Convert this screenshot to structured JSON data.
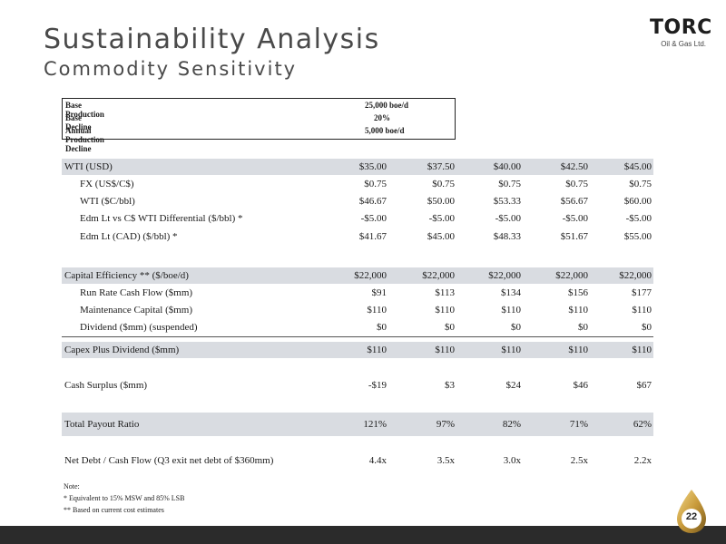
{
  "header": {
    "title": "Sustainability Analysis",
    "subtitle": "Commodity Sensitivity",
    "logo_name": "TORC",
    "logo_sub": "Oil & Gas Ltd."
  },
  "base": [
    {
      "label": "Base Production",
      "value": "25,000 boe/d"
    },
    {
      "label": "Base Decline",
      "value": "20%"
    },
    {
      "label": "Annual Production Decline",
      "value": "5,000 boe/d"
    }
  ],
  "rows": [
    {
      "label": "WTI (USD)",
      "values": [
        "$35.00",
        "$37.50",
        "$40.00",
        "$42.50",
        "$45.00"
      ]
    },
    {
      "label": "FX (US$/C$)",
      "values": [
        "$0.75",
        "$0.75",
        "$0.75",
        "$0.75",
        "$0.75"
      ]
    },
    {
      "label": "WTI ($C/bbl)",
      "values": [
        "$46.67",
        "$50.00",
        "$53.33",
        "$56.67",
        "$60.00"
      ]
    },
    {
      "label": "Edm Lt vs C$ WTI Differential ($/bbl) *",
      "values": [
        "-$5.00",
        "-$5.00",
        "-$5.00",
        "-$5.00",
        "-$5.00"
      ]
    },
    {
      "label": "Edm Lt (CAD) ($/bbl) *",
      "values": [
        "$41.67",
        "$45.00",
        "$48.33",
        "$51.67",
        "$55.00"
      ]
    },
    {
      "label": "Capital Efficiency ** ($/boe/d)",
      "values": [
        "$22,000",
        "$22,000",
        "$22,000",
        "$22,000",
        "$22,000"
      ]
    },
    {
      "label": "Run Rate Cash Flow ($mm)",
      "values": [
        "$91",
        "$113",
        "$134",
        "$156",
        "$177"
      ]
    },
    {
      "label": "Maintenance Capital ($mm)",
      "values": [
        "$110",
        "$110",
        "$110",
        "$110",
        "$110"
      ]
    },
    {
      "label": "Dividend ($mm) (suspended)",
      "values": [
        "$0",
        "$0",
        "$0",
        "$0",
        "$0"
      ]
    },
    {
      "label": "Capex Plus Dividend ($mm)",
      "values": [
        "$110",
        "$110",
        "$110",
        "$110",
        "$110"
      ]
    },
    {
      "label": "Cash Surplus ($mm)",
      "values": [
        "-$19",
        "$3",
        "$24",
        "$46",
        "$67"
      ]
    },
    {
      "label": "Total Payout Ratio",
      "values": [
        "121%",
        "97%",
        "82%",
        "71%",
        "62%"
      ]
    },
    {
      "label": "Net Debt / Cash Flow (Q3 exit net debt of $360mm)",
      "values": [
        "4.4x",
        "3.5x",
        "3.0x",
        "2.5x",
        "2.2x"
      ]
    }
  ],
  "notes": {
    "heading": "Note:",
    "items": [
      "* Equivalent to 15% MSW and 85% LSB",
      "** Based on current cost estimates"
    ]
  },
  "page_number": "22",
  "colors": {
    "row_shade": "#d9dce1",
    "footer": "#2b2b2b",
    "logo_accent": "#c89a3a"
  }
}
